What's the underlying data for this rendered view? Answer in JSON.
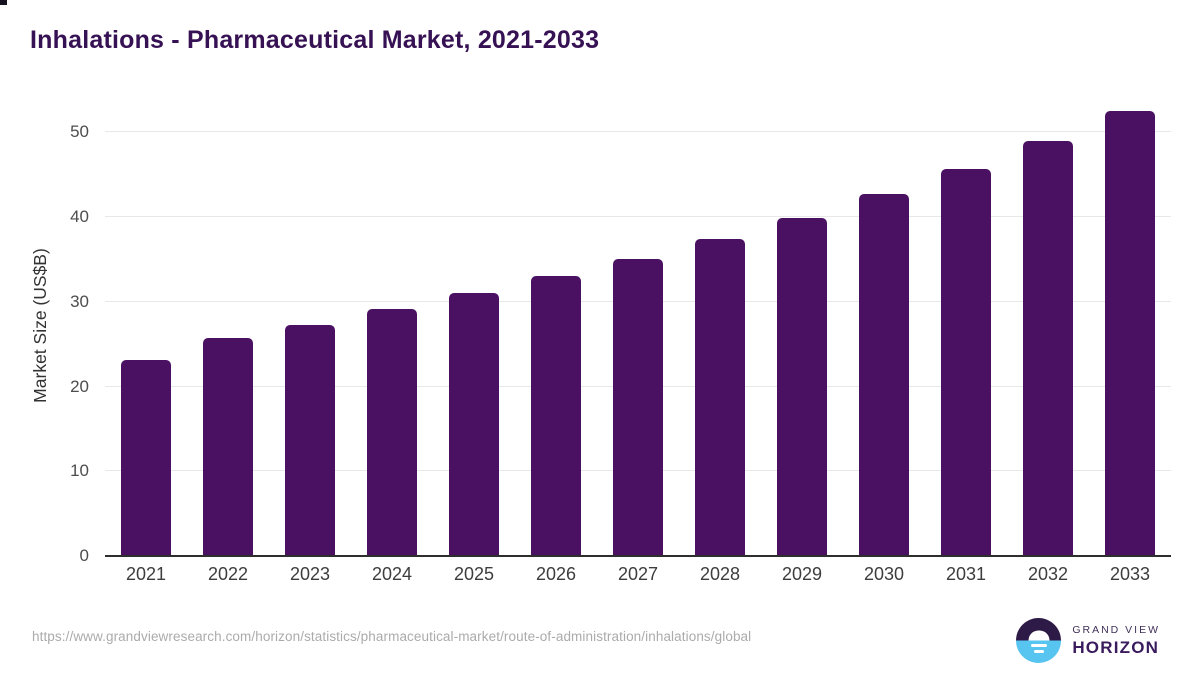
{
  "title": "Inhalations - Pharmaceutical Market, 2021-2033",
  "chart_data": {
    "type": "bar",
    "categories": [
      "2021",
      "2022",
      "2023",
      "2024",
      "2025",
      "2026",
      "2027",
      "2028",
      "2029",
      "2030",
      "2031",
      "2032",
      "2033"
    ],
    "values": [
      23.1,
      25.7,
      27.3,
      29.1,
      31.0,
      33.0,
      35.0,
      37.4,
      39.9,
      42.7,
      45.7,
      49.0,
      52.5
    ],
    "title": "Inhalations - Pharmaceutical Market, 2021-2033",
    "xlabel": "",
    "ylabel": "Market Size (US$B)",
    "ylim": [
      0,
      54
    ],
    "yticks": [
      0,
      10,
      20,
      30,
      40,
      50
    ],
    "grid": "horizontal gridlines at each y tick, legend none",
    "bar_color": "#4a1162"
  },
  "footer": {
    "source_url": "https://www.grandviewresearch.com/horizon/statistics/pharmaceutical-market/route-of-administration/inhalations/global",
    "logo": {
      "line1": "GRAND VIEW",
      "line2": "HORIZON"
    }
  },
  "colors": {
    "title_text": "#361153",
    "bar": "#4a1162",
    "axis_line": "#2e2e2e",
    "gridline": "#e8e8e8",
    "tick_label": "#4d4d4d",
    "url_text": "#ababab",
    "logo_dark": "#2e1a47",
    "logo_blue": "#58c4f0"
  }
}
